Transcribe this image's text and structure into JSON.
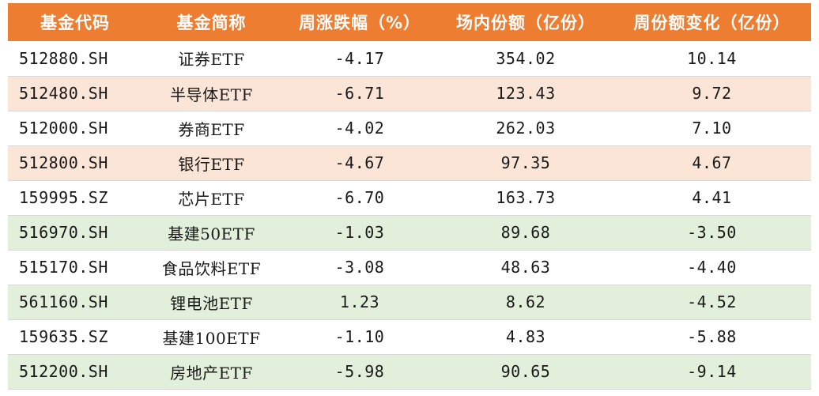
{
  "table": {
    "headers": [
      "基金代码",
      "基金简称",
      "周涨跌幅（%）",
      "场内份额（亿份）",
      "周份额变化（亿份）"
    ],
    "rows": [
      {
        "code": "512880.SH",
        "name": "证券ETF",
        "weekly_change_pct": "-4.17",
        "shares": "354.02",
        "share_change": "10.14",
        "tone": "plain"
      },
      {
        "code": "512480.SH",
        "name": "半导体ETF",
        "weekly_change_pct": "-6.71",
        "shares": "123.43",
        "share_change": "9.72",
        "tone": "pos"
      },
      {
        "code": "512000.SH",
        "name": "券商ETF",
        "weekly_change_pct": "-4.02",
        "shares": "262.03",
        "share_change": "7.10",
        "tone": "plain"
      },
      {
        "code": "512800.SH",
        "name": "银行ETF",
        "weekly_change_pct": "-4.67",
        "shares": "97.35",
        "share_change": "4.67",
        "tone": "pos"
      },
      {
        "code": "159995.SZ",
        "name": "芯片ETF",
        "weekly_change_pct": "-6.70",
        "shares": "163.73",
        "share_change": "4.41",
        "tone": "plain"
      },
      {
        "code": "516970.SH",
        "name": "基建50ETF",
        "weekly_change_pct": "-1.03",
        "shares": "89.68",
        "share_change": "-3.50",
        "tone": "neg"
      },
      {
        "code": "515170.SH",
        "name": "食品饮料ETF",
        "weekly_change_pct": "-3.08",
        "shares": "48.63",
        "share_change": "-4.40",
        "tone": "plain"
      },
      {
        "code": "561160.SH",
        "name": "锂电池ETF",
        "weekly_change_pct": "1.23",
        "shares": "8.62",
        "share_change": "-4.52",
        "tone": "neg"
      },
      {
        "code": "159635.SZ",
        "name": "基建100ETF",
        "weekly_change_pct": "-1.10",
        "shares": "4.83",
        "share_change": "-5.88",
        "tone": "plain"
      },
      {
        "code": "512200.SH",
        "name": "房地产ETF",
        "weekly_change_pct": "-5.98",
        "shares": "90.65",
        "share_change": "-9.14",
        "tone": "neg"
      }
    ],
    "colors": {
      "header_bg": "#ED7D31",
      "header_text": "#FFFFFF",
      "positive_row_bg": "#FBE5D6",
      "negative_row_bg": "#E2EFDA"
    }
  }
}
